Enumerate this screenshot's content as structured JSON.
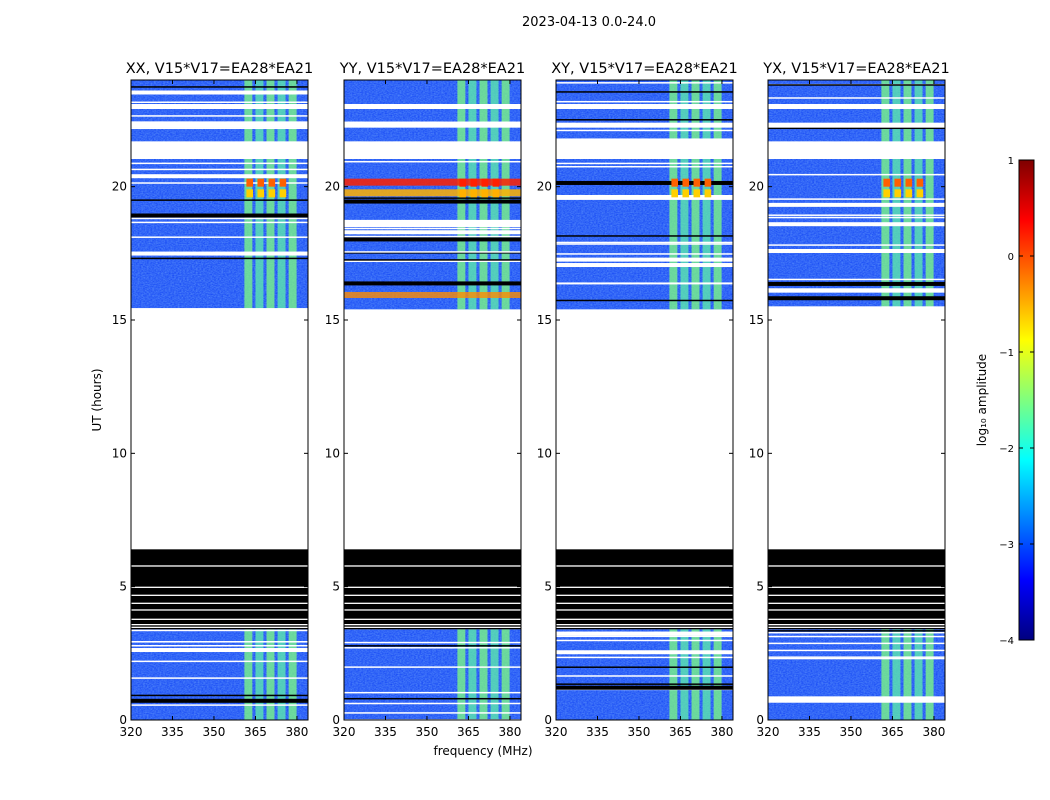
{
  "figure_title": "2023-04-13 0.0-24.0",
  "chart_data": {
    "type": "heatmap",
    "shared_xlabel": "frequency (MHz)",
    "shared_ylabel": "UT (hours)",
    "x_ticks": [
      320,
      335,
      350,
      365,
      380
    ],
    "y_ticks": [
      0,
      5,
      10,
      15,
      20
    ],
    "xlim": [
      320,
      384
    ],
    "ylim": [
      0,
      24
    ],
    "panels": [
      {
        "title": "XX, V15*V17=EA28*EA21",
        "pol": "XX"
      },
      {
        "title": "YY, V15*V17=EA28*EA21",
        "pol": "YY"
      },
      {
        "title": "XY, V15*V17=EA28*EA21",
        "pol": "XY"
      },
      {
        "title": "YX, V15*V17=EA28*EA21",
        "pol": "YX"
      }
    ],
    "data_coverage": {
      "observed_intervals_hours": [
        [
          0,
          3.4
        ],
        [
          15.4,
          24
        ]
      ],
      "flagged_black_interval_hours": [
        3.4,
        6.4
      ],
      "empty_interval_hours": [
        6.4,
        15.4
      ],
      "bright_band_frequency_range_MHz": [
        361,
        381
      ]
    },
    "colorbar": {
      "label": "log₁₀ amplitude",
      "range": [
        -4,
        1
      ],
      "ticks": [
        "1",
        "0",
        "−1",
        "−2",
        "−3",
        "−4"
      ],
      "colormap": "jet"
    }
  },
  "colors": {
    "background_field": "#1a4cf5",
    "flagged": "#000000",
    "jet": [
      "#00007f",
      "#0000ff",
      "#007fff",
      "#00ffff",
      "#7fff7f",
      "#ffff00",
      "#ff7f00",
      "#ff0000",
      "#7f0000"
    ]
  }
}
